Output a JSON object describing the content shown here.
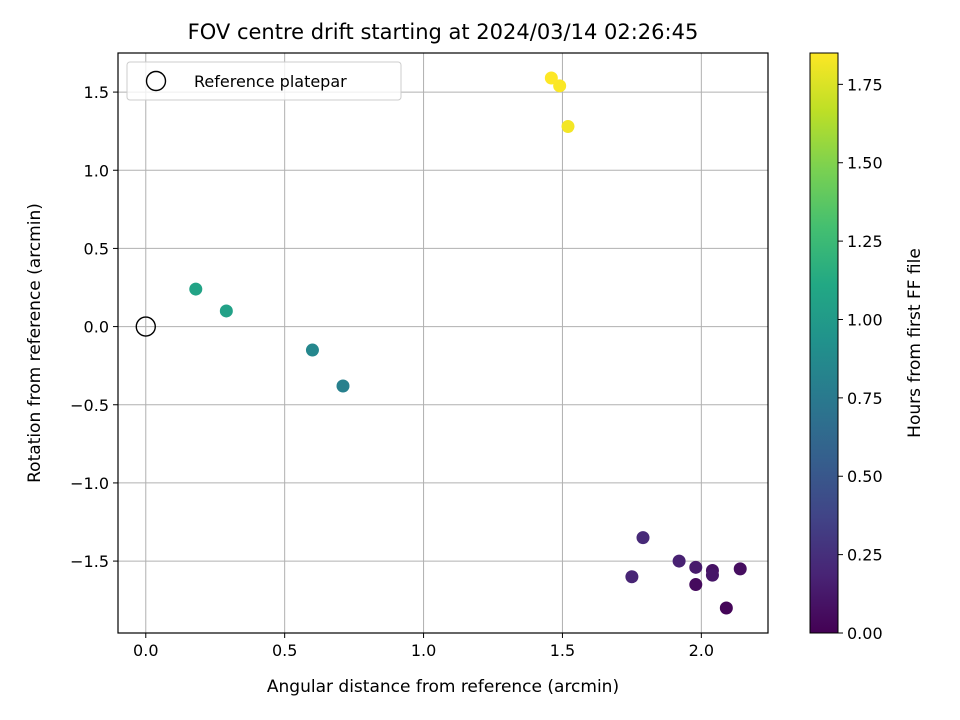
{
  "chart_data": {
    "type": "scatter",
    "title": "FOV centre drift starting at 2024/03/14 02:26:45",
    "xlabel": "Angular distance from reference (arcmin)",
    "ylabel": "Rotation from reference (arcmin)",
    "xlim": [
      -0.1,
      2.24
    ],
    "ylim": [
      -1.96,
      1.75
    ],
    "xticks": [
      0.0,
      0.5,
      1.0,
      1.5,
      2.0
    ],
    "xtick_labels": [
      "0.0",
      "0.5",
      "1.0",
      "1.5",
      "2.0"
    ],
    "yticks": [
      -1.5,
      -1.0,
      -0.5,
      0.0,
      0.5,
      1.0,
      1.5
    ],
    "ytick_labels": [
      "−1.5",
      "−1.0",
      "−0.5",
      "0.0",
      "0.5",
      "1.0",
      "1.5"
    ],
    "grid": true,
    "legend": {
      "position": "top-left",
      "entries": [
        "Reference platepar"
      ]
    },
    "reference_point": {
      "name": "Reference platepar",
      "x": 0.0,
      "y": 0.0
    },
    "colorbar": {
      "label": "Hours from first FF file",
      "colormap": "viridis",
      "range": [
        0.0,
        1.85
      ],
      "ticks": [
        0.0,
        0.25,
        0.5,
        0.75,
        1.0,
        1.25,
        1.5,
        1.75
      ],
      "tick_labels": [
        "0.00",
        "0.25",
        "0.50",
        "0.75",
        "1.00",
        "1.25",
        "1.50",
        "1.75"
      ]
    },
    "points": [
      {
        "x": 2.09,
        "y": -1.8,
        "c": 0.02
      },
      {
        "x": 1.98,
        "y": -1.65,
        "c": 0.05
      },
      {
        "x": 2.14,
        "y": -1.55,
        "c": 0.07
      },
      {
        "x": 2.04,
        "y": -1.56,
        "c": 0.09
      },
      {
        "x": 2.04,
        "y": -1.59,
        "c": 0.11
      },
      {
        "x": 1.98,
        "y": -1.54,
        "c": 0.13
      },
      {
        "x": 1.92,
        "y": -1.5,
        "c": 0.17
      },
      {
        "x": 1.75,
        "y": -1.6,
        "c": 0.19
      },
      {
        "x": 1.79,
        "y": -1.35,
        "c": 0.22
      },
      {
        "x": 0.71,
        "y": -0.38,
        "c": 0.8
      },
      {
        "x": 0.6,
        "y": -0.15,
        "c": 0.85
      },
      {
        "x": 0.29,
        "y": 0.1,
        "c": 1.05
      },
      {
        "x": 0.18,
        "y": 0.24,
        "c": 1.07
      },
      {
        "x": 1.52,
        "y": 1.28,
        "c": 1.82
      },
      {
        "x": 1.49,
        "y": 1.54,
        "c": 1.84
      },
      {
        "x": 1.46,
        "y": 1.59,
        "c": 1.85
      }
    ]
  }
}
